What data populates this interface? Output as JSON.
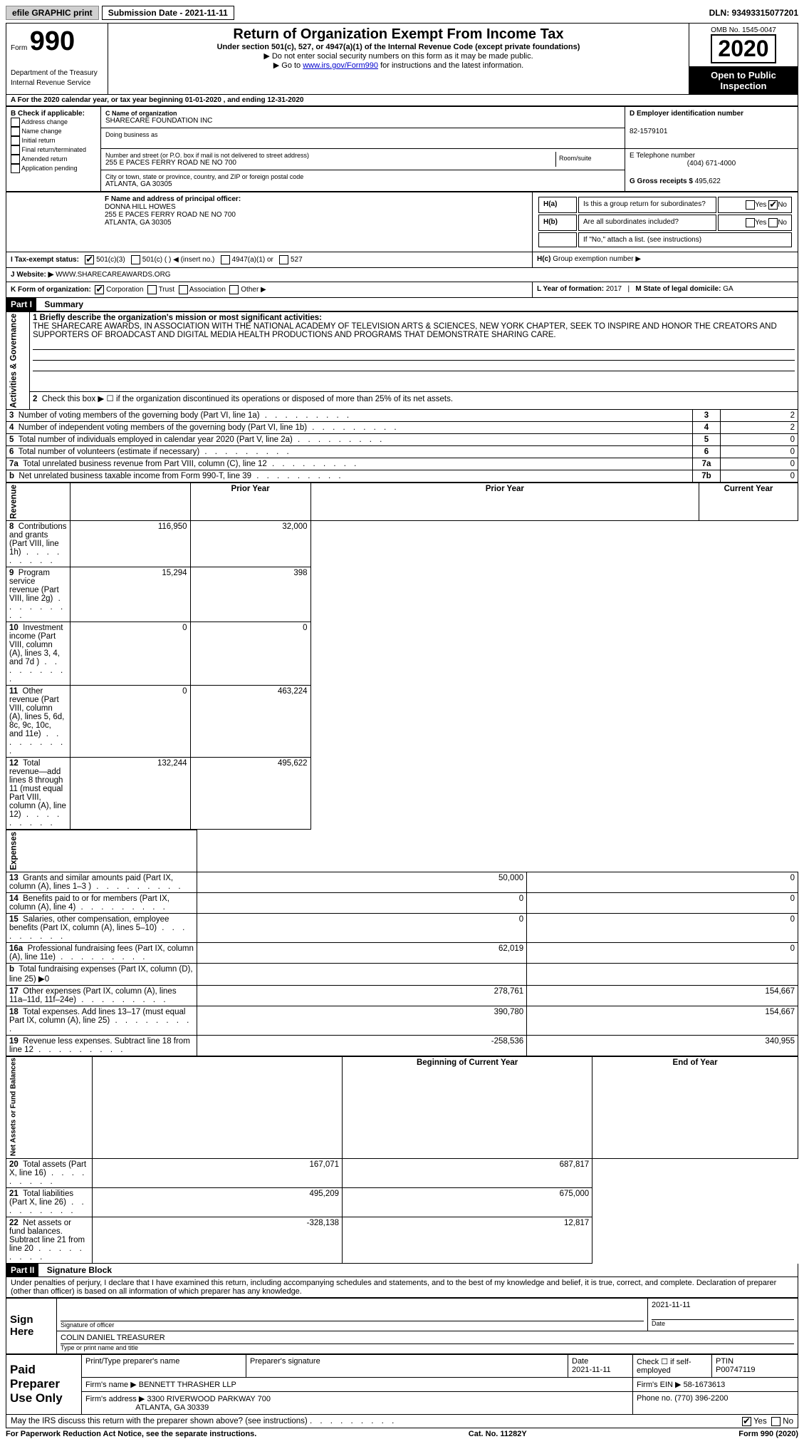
{
  "top": {
    "efile": "efile GRAPHIC print",
    "submission": "Submission Date - 2021-11-11",
    "dln": "DLN: 93493315077201"
  },
  "header": {
    "form_label": "Form",
    "form_no": "990",
    "dept": "Department of the Treasury\nInternal Revenue Service",
    "title": "Return of Organization Exempt From Income Tax",
    "subtitle": "Under section 501(c), 527, or 4947(a)(1) of the Internal Revenue Code (except private foundations)",
    "note1": "▶ Do not enter social security numbers on this form as it may be made public.",
    "note2_pre": "▶ Go to ",
    "note2_link": "www.irs.gov/Form990",
    "note2_post": " for instructions and the latest information.",
    "omb": "OMB No. 1545-0047",
    "year": "2020",
    "inspection": "Open to Public Inspection"
  },
  "line_a": "For the 2020 calendar year, or tax year beginning 01-01-2020   , and ending 12-31-2020",
  "box_b": {
    "label": "B Check if applicable:",
    "items": [
      "Address change",
      "Name change",
      "Initial return",
      "Final return/terminated",
      "Amended return",
      "Application pending"
    ]
  },
  "box_c": {
    "label": "C Name of organization",
    "name": "SHARECARE FOUNDATION INC",
    "dba_label": "Doing business as",
    "addr_label": "Number and street (or P.O. box if mail is not delivered to street address)",
    "addr": "255 E PACES FERRY ROAD NE NO 700",
    "room_label": "Room/suite",
    "city_label": "City or town, state or province, country, and ZIP or foreign postal code",
    "city": "ATLANTA, GA  30305"
  },
  "box_d": {
    "label": "D Employer identification number",
    "value": "82-1579101"
  },
  "box_e": {
    "label": "E Telephone number",
    "value": "(404) 671-4000"
  },
  "box_g": {
    "label": "G Gross receipts $ ",
    "value": "495,622"
  },
  "box_f": {
    "label": "F Name and address of principal officer:",
    "name": "DONNA HILL HOWES",
    "addr1": "255 E PACES FERRY ROAD NE NO 700",
    "addr2": "ATLANTA, GA  30305"
  },
  "box_h": {
    "a": "Is this a group return for subordinates?",
    "b": "Are all subordinates included?",
    "note": "If \"No,\" attach a list. (see instructions)",
    "c": "Group exemption number ▶"
  },
  "box_i": {
    "label": "I    Tax-exempt status:",
    "opts": [
      "501(c)(3)",
      "501(c) (  ) ◀ (insert no.)",
      "4947(a)(1) or",
      "527"
    ]
  },
  "box_j": {
    "label": "J    Website: ▶",
    "value": "WWW.SHARECAREAWARDS.ORG"
  },
  "box_k": {
    "label": "K Form of organization:",
    "opts": [
      "Corporation",
      "Trust",
      "Association",
      "Other ▶"
    ]
  },
  "box_l": {
    "label": "L Year of formation: ",
    "value": "2017"
  },
  "box_m": {
    "label": "M State of legal domicile: ",
    "value": "GA"
  },
  "part1": {
    "header": "Part I",
    "title": "Summary",
    "mission_label": "1  Briefly describe the organization's mission or most significant activities:",
    "mission": "THE SHARECARE AWARDS, IN ASSOCIATION WITH THE NATIONAL ACADEMY OF TELEVISION ARTS & SCIENCES, NEW YORK CHAPTER, SEEK TO INSPIRE AND HONOR THE CREATORS AND SUPPORTERS OF BROADCAST AND DIGITAL MEDIA HEALTH PRODUCTIONS AND PROGRAMS THAT DEMONSTRATE SHARING CARE.",
    "line2": "Check this box ▶ ☐  if the organization discontinued its operations or disposed of more than 25% of its net assets.",
    "sections": {
      "governance": "Activities & Governance",
      "revenue": "Revenue",
      "expenses": "Expenses",
      "netassets": "Net Assets or Fund Balances"
    },
    "col_headers": {
      "prior": "Prior Year",
      "current": "Current Year",
      "boy": "Beginning of Current Year",
      "eoy": "End of Year"
    },
    "rows": [
      {
        "n": "3",
        "d": "Number of voting members of the governing body (Part VI, line 1a)",
        "box": "3",
        "v": "2"
      },
      {
        "n": "4",
        "d": "Number of independent voting members of the governing body (Part VI, line 1b)",
        "box": "4",
        "v": "2"
      },
      {
        "n": "5",
        "d": "Total number of individuals employed in calendar year 2020 (Part V, line 2a)",
        "box": "5",
        "v": "0"
      },
      {
        "n": "6",
        "d": "Total number of volunteers (estimate if necessary)",
        "box": "6",
        "v": "0"
      },
      {
        "n": "7a",
        "d": "Total unrelated business revenue from Part VIII, column (C), line 12",
        "box": "7a",
        "v": "0"
      },
      {
        "n": "b",
        "d": "Net unrelated business taxable income from Form 990-T, line 39",
        "box": "7b",
        "v": "0"
      }
    ],
    "rev": [
      {
        "n": "8",
        "d": "Contributions and grants (Part VIII, line 1h)",
        "p": "116,950",
        "c": "32,000"
      },
      {
        "n": "9",
        "d": "Program service revenue (Part VIII, line 2g)",
        "p": "15,294",
        "c": "398"
      },
      {
        "n": "10",
        "d": "Investment income (Part VIII, column (A), lines 3, 4, and 7d )",
        "p": "0",
        "c": "0"
      },
      {
        "n": "11",
        "d": "Other revenue (Part VIII, column (A), lines 5, 6d, 8c, 9c, 10c, and 11e)",
        "p": "0",
        "c": "463,224"
      },
      {
        "n": "12",
        "d": "Total revenue—add lines 8 through 11 (must equal Part VIII, column (A), line 12)",
        "p": "132,244",
        "c": "495,622"
      }
    ],
    "exp": [
      {
        "n": "13",
        "d": "Grants and similar amounts paid (Part IX, column (A), lines 1–3 )",
        "p": "50,000",
        "c": "0"
      },
      {
        "n": "14",
        "d": "Benefits paid to or for members (Part IX, column (A), line 4)",
        "p": "0",
        "c": "0"
      },
      {
        "n": "15",
        "d": "Salaries, other compensation, employee benefits (Part IX, column (A), lines 5–10)",
        "p": "0",
        "c": "0"
      },
      {
        "n": "16a",
        "d": "Professional fundraising fees (Part IX, column (A), line 11e)",
        "p": "62,019",
        "c": "0"
      },
      {
        "n": "b",
        "d": "Total fundraising expenses (Part IX, column (D), line 25) ▶0",
        "p": "",
        "c": ""
      },
      {
        "n": "17",
        "d": "Other expenses (Part IX, column (A), lines 11a–11d, 11f–24e)",
        "p": "278,761",
        "c": "154,667"
      },
      {
        "n": "18",
        "d": "Total expenses. Add lines 13–17 (must equal Part IX, column (A), line 25)",
        "p": "390,780",
        "c": "154,667"
      },
      {
        "n": "19",
        "d": "Revenue less expenses. Subtract line 18 from line 12",
        "p": "-258,536",
        "c": "340,955"
      }
    ],
    "bal": [
      {
        "n": "20",
        "d": "Total assets (Part X, line 16)",
        "p": "167,071",
        "c": "687,817"
      },
      {
        "n": "21",
        "d": "Total liabilities (Part X, line 26)",
        "p": "495,209",
        "c": "675,000"
      },
      {
        "n": "22",
        "d": "Net assets or fund balances. Subtract line 21 from line 20",
        "p": "-328,138",
        "c": "12,817"
      }
    ]
  },
  "part2": {
    "header": "Part II",
    "title": "Signature Block",
    "perjury": "Under penalties of perjury, I declare that I have examined this return, including accompanying schedules and statements, and to the best of my knowledge and belief, it is true, correct, and complete. Declaration of preparer (other than officer) is based on all information of which preparer has any knowledge.",
    "sign_here": "Sign Here",
    "sig_officer": "Signature of officer",
    "date": "Date",
    "date_val": "2021-11-11",
    "officer_name": "COLIN DANIEL  TREASURER",
    "name_title": "Type or print name and title",
    "paid": "Paid Preparer Use Only",
    "preparer_name_label": "Print/Type preparer's name",
    "preparer_sig_label": "Preparer's signature",
    "prep_date_label": "Date",
    "prep_date": "2021-11-11",
    "check_if": "Check ☐ if self-employed",
    "ptin_label": "PTIN",
    "ptin": "P00747119",
    "firm_name_label": "Firm's name    ▶",
    "firm_name": "BENNETT THRASHER LLP",
    "firm_ein_label": "Firm's EIN ▶",
    "firm_ein": "58-1673613",
    "firm_addr_label": "Firm's address ▶",
    "firm_addr1": "3300 RIVERWOOD PARKWAY 700",
    "firm_addr2": "ATLANTA, GA  30339",
    "phone_label": "Phone no.",
    "phone": "(770) 396-2200",
    "may_discuss": "May the IRS discuss this return with the preparer shown above? (see instructions)"
  },
  "footer": {
    "left": "For Paperwork Reduction Act Notice, see the separate instructions.",
    "mid": "Cat. No. 11282Y",
    "right": "Form 990 (2020)"
  }
}
